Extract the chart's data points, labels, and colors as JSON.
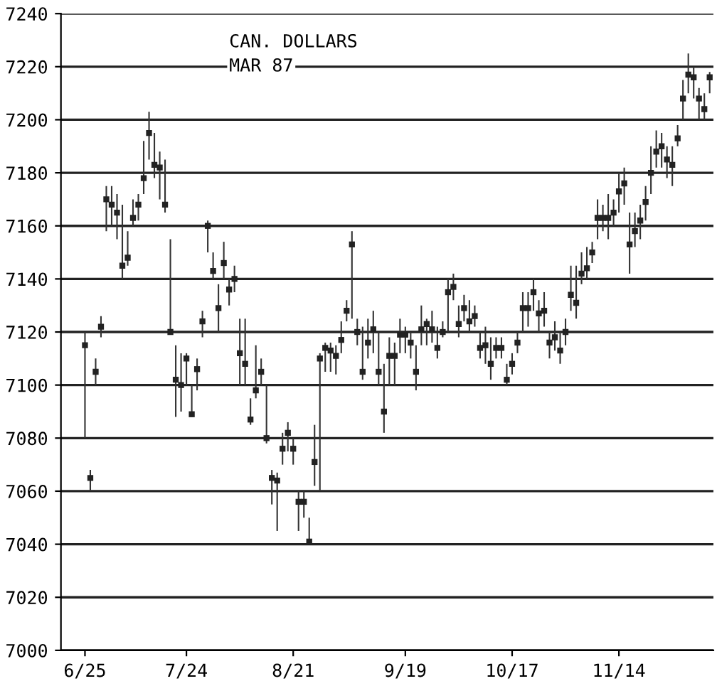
{
  "chart_data": {
    "type": "bar",
    "title": "CAN. DOLLARS",
    "subtitle": "MAR 87",
    "categories": [
      "6/25",
      null,
      null,
      null,
      null,
      null,
      null,
      null,
      null,
      null,
      null,
      null,
      null,
      null,
      null,
      null,
      null,
      null,
      null,
      "7/24",
      null,
      null,
      null,
      null,
      null,
      null,
      null,
      null,
      null,
      null,
      null,
      null,
      null,
      null,
      null,
      null,
      null,
      null,
      null,
      "8/21",
      null,
      null,
      null,
      null,
      null,
      null,
      null,
      null,
      null,
      null,
      null,
      null,
      null,
      null,
      null,
      null,
      null,
      null,
      null,
      null,
      "9/19",
      null,
      null,
      null,
      null,
      null,
      null,
      null,
      null,
      null,
      null,
      null,
      null,
      null,
      null,
      null,
      null,
      null,
      null,
      null,
      "10/17",
      null,
      null,
      null,
      null,
      null,
      null,
      null,
      null,
      null,
      null,
      null,
      null,
      null,
      null,
      null,
      null,
      null,
      null,
      null,
      "11/14",
      null,
      null,
      null,
      null,
      null,
      null,
      null,
      null,
      null,
      null,
      null,
      null,
      null,
      null,
      null,
      null,
      null
    ],
    "series": [
      {
        "color": "#333333",
        "base": [
          7080,
          7060,
          7100,
          7118,
          7158,
          7160,
          7155,
          7140,
          7145,
          7160,
          7162,
          7172,
          7185,
          7178,
          7170,
          7165,
          7120,
          7088,
          7090,
          7100,
          7088,
          7098,
          7118,
          7150,
          7140,
          7120,
          7140,
          7130,
          7135,
          7100,
          7100,
          7085,
          7095,
          7100,
          7078,
          7055,
          7045,
          7070,
          7075,
          7070,
          7045,
          7050,
          7040,
          7062,
          7060,
          7105,
          7105,
          7104,
          7112,
          7124,
          7125,
          7115,
          7102,
          7110,
          7112,
          7100,
          7082,
          7100,
          7100,
          7112,
          7112,
          7110,
          7098,
          7115,
          7115,
          7116,
          7110,
          7118,
          7120,
          7132,
          7118,
          7124,
          7120,
          7122,
          7110,
          7108,
          7102,
          7110,
          7110,
          7100,
          7104,
          7112,
          7120,
          7122,
          7128,
          7120,
          7122,
          7110,
          7113,
          7108,
          7115,
          7128,
          7125,
          7138,
          7140,
          7146,
          7155,
          7158,
          7155,
          7160,
          7165,
          7168,
          7142,
          7152,
          7155,
          7162,
          7172,
          7182,
          7182,
          7178,
          7175,
          7190,
          7200,
          7210,
          7208,
          7200,
          7200,
          7210
        ],
        "values": [
          40,
          8,
          10,
          8,
          17,
          15,
          17,
          28,
          13,
          10,
          10,
          20,
          18,
          17,
          18,
          20,
          35,
          27,
          22,
          12,
          12,
          12,
          10,
          12,
          10,
          18,
          14,
          10,
          10,
          25,
          25,
          10,
          20,
          10,
          22,
          13,
          22,
          12,
          11,
          10,
          15,
          10,
          10,
          23,
          52,
          11,
          11,
          11,
          12,
          8,
          33,
          10,
          20,
          15,
          16,
          20,
          26,
          18,
          16,
          13,
          10,
          10,
          17,
          15,
          10,
          12,
          12,
          6,
          20,
          10,
          12,
          10,
          12,
          8,
          10,
          14,
          16,
          8,
          8,
          8,
          8,
          8,
          15,
          13,
          12,
          12,
          13,
          10,
          11,
          12,
          10,
          17,
          20,
          12,
          12,
          8,
          15,
          10,
          17,
          10,
          15,
          14,
          23,
          13,
          13,
          13,
          18,
          14,
          13,
          12,
          15,
          8,
          15,
          15,
          12,
          12,
          10,
          8
        ]
      },
      {
        "type": "scatter",
        "color": "#222222",
        "marker": "square",
        "values": [
          7115,
          7065,
          7105,
          7122,
          7170,
          7168,
          7165,
          7145,
          7148,
          7163,
          7168,
          7178,
          7195,
          7183,
          7182,
          7168,
          7120,
          7102,
          7100,
          7110,
          7089,
          7106,
          7124,
          7160,
          7143,
          7129,
          7146,
          7136,
          7140,
          7112,
          7108,
          7087,
          7098,
          7105,
          7080,
          7065,
          7064,
          7076,
          7082,
          7076,
          7056,
          7056,
          7041,
          7071,
          7110,
          7114,
          7113,
          7111,
          7117,
          7128,
          7153,
          7120,
          7105,
          7116,
          7121,
          7105,
          7090,
          7111,
          7111,
          7119,
          7119,
          7116,
          7105,
          7121,
          7123,
          7121,
          7114,
          7120,
          7135,
          7137,
          7123,
          7129,
          7124,
          7126,
          7114,
          7115,
          7108,
          7114,
          7114,
          7102,
          7108,
          7116,
          7129,
          7129,
          7135,
          7127,
          7128,
          7116,
          7118,
          7113,
          7120,
          7134,
          7131,
          7142,
          7144,
          7150,
          7163,
          7163,
          7163,
          7165,
          7173,
          7176,
          7153,
          7158,
          7162,
          7169,
          7180,
          7188,
          7190,
          7185,
          7183,
          7193,
          7208,
          7217,
          7216,
          7208,
          7204,
          7216
        ]
      }
    ],
    "ylim": [
      7000,
      7240
    ],
    "yticks": [
      7000,
      7020,
      7040,
      7060,
      7080,
      7100,
      7120,
      7140,
      7160,
      7180,
      7200,
      7220,
      7240
    ],
    "grid": "y",
    "legend": false
  }
}
